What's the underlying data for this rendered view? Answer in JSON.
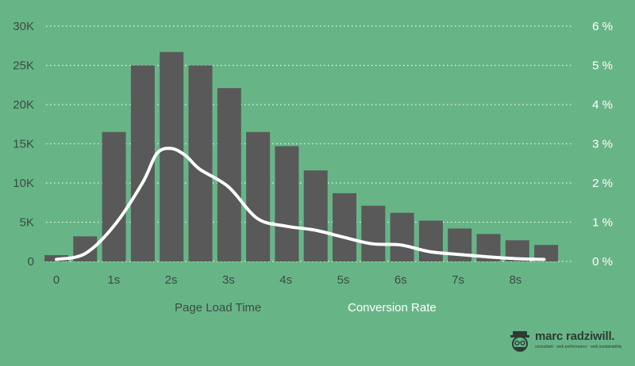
{
  "chart_data": {
    "type": "bar+line",
    "x_ticks": [
      "0",
      "1s",
      "2s",
      "3s",
      "4s",
      "5s",
      "6s",
      "7s",
      "8s"
    ],
    "bars": {
      "name": "Page Load Time",
      "color": "#595959",
      "values": [
        800,
        3200,
        16500,
        25000,
        26700,
        25000,
        22100,
        16500,
        14700,
        11600,
        8700,
        7100,
        6200,
        5200,
        4200,
        3500,
        2700,
        2100
      ]
    },
    "line": {
      "name": "Conversion Rate",
      "color": "#ffffff",
      "points": [
        [
          0,
          0.05
        ],
        [
          0.5,
          0.2
        ],
        [
          1.0,
          0.9
        ],
        [
          1.5,
          2.0
        ],
        [
          1.75,
          2.75
        ],
        [
          2.0,
          2.88
        ],
        [
          2.25,
          2.7
        ],
        [
          2.5,
          2.35
        ],
        [
          3.0,
          1.9
        ],
        [
          3.5,
          1.1
        ],
        [
          4.0,
          0.9
        ],
        [
          4.5,
          0.8
        ],
        [
          5.0,
          0.62
        ],
        [
          5.5,
          0.45
        ],
        [
          6.0,
          0.42
        ],
        [
          6.5,
          0.25
        ],
        [
          7.0,
          0.18
        ],
        [
          7.5,
          0.12
        ],
        [
          8.0,
          0.07
        ],
        [
          8.5,
          0.05
        ]
      ]
    },
    "y_left": {
      "ticks": [
        "0",
        "5K",
        "10K",
        "15K",
        "20K",
        "25K",
        "30K"
      ],
      "max": 30000
    },
    "y_right": {
      "ticks": [
        "0 %",
        "1 %",
        "2 %",
        "3 %",
        "4 %",
        "5 %",
        "6 %"
      ],
      "max": 6
    },
    "grid": true,
    "grid_color": "#ffffff",
    "legend_position": "bottom"
  },
  "legend": {
    "left_label": "Page Load Time",
    "right_label": "Conversion Rate"
  },
  "branding": {
    "name": "marc radziwill.",
    "tagline": "consultant · web performance · web sustainability"
  }
}
